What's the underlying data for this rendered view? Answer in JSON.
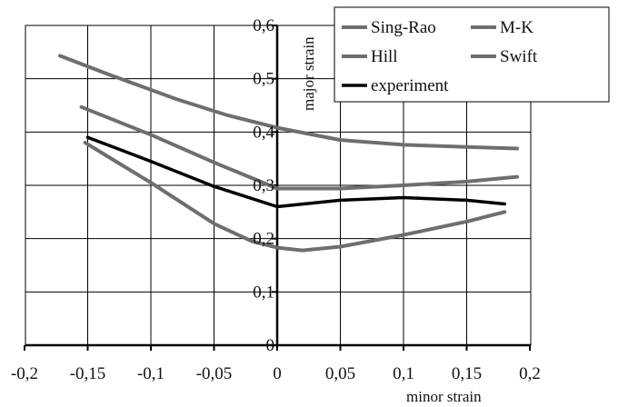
{
  "chart_data": {
    "type": "line",
    "title": "",
    "xlabel": "minor strain",
    "ylabel": "major strain",
    "xlim": [
      -0.2,
      0.2
    ],
    "ylim": [
      0,
      0.6
    ],
    "x_ticks": [
      "-0,2",
      "-0,15",
      "-0,1",
      "-0,05",
      "0",
      "0,05",
      "0,1",
      "0,15",
      "0,2"
    ],
    "y_ticks": [
      "0",
      "0,1",
      "0,2",
      "0,3",
      "0,4",
      "0,5",
      "0,6"
    ],
    "grid": true,
    "legend": "top-right",
    "series": [
      {
        "name": "Sing-Rao",
        "color": "#6e6e6e",
        "points": [
          [
            -0.172,
            0.543
          ],
          [
            -0.13,
            0.505
          ],
          [
            -0.08,
            0.462
          ],
          [
            -0.04,
            0.432
          ],
          [
            0,
            0.408
          ],
          [
            0.05,
            0.385
          ],
          [
            0.1,
            0.376
          ],
          [
            0.15,
            0.372
          ],
          [
            0.19,
            0.369
          ]
        ]
      },
      {
        "name": "M-K",
        "color": "#6e6e6e",
        "points": [
          [
            -0.152,
            0.38
          ],
          [
            -0.1,
            0.305
          ],
          [
            -0.05,
            0.228
          ],
          [
            -0.02,
            0.195
          ],
          [
            0,
            0.183
          ],
          [
            0.02,
            0.178
          ],
          [
            0.05,
            0.185
          ],
          [
            0.1,
            0.207
          ],
          [
            0.15,
            0.232
          ],
          [
            0.18,
            0.25
          ]
        ]
      },
      {
        "name": "Hill",
        "color": "#6e6e6e",
        "points": [
          [
            -0.155,
            0.447
          ],
          [
            -0.1,
            0.395
          ],
          [
            -0.05,
            0.343
          ],
          [
            0,
            0.294
          ],
          [
            0.05,
            0.294
          ],
          [
            0.1,
            0.3
          ],
          [
            0.15,
            0.307
          ],
          [
            0.19,
            0.316
          ]
        ]
      },
      {
        "name": "Swift",
        "color": "#6e6e6e",
        "points": []
      },
      {
        "name": "experiment",
        "color": "#000000",
        "points": [
          [
            -0.15,
            0.39
          ],
          [
            -0.1,
            0.345
          ],
          [
            -0.05,
            0.298
          ],
          [
            0,
            0.26
          ],
          [
            0.05,
            0.272
          ],
          [
            0.1,
            0.277
          ],
          [
            0.15,
            0.272
          ],
          [
            0.18,
            0.265
          ]
        ]
      }
    ]
  }
}
